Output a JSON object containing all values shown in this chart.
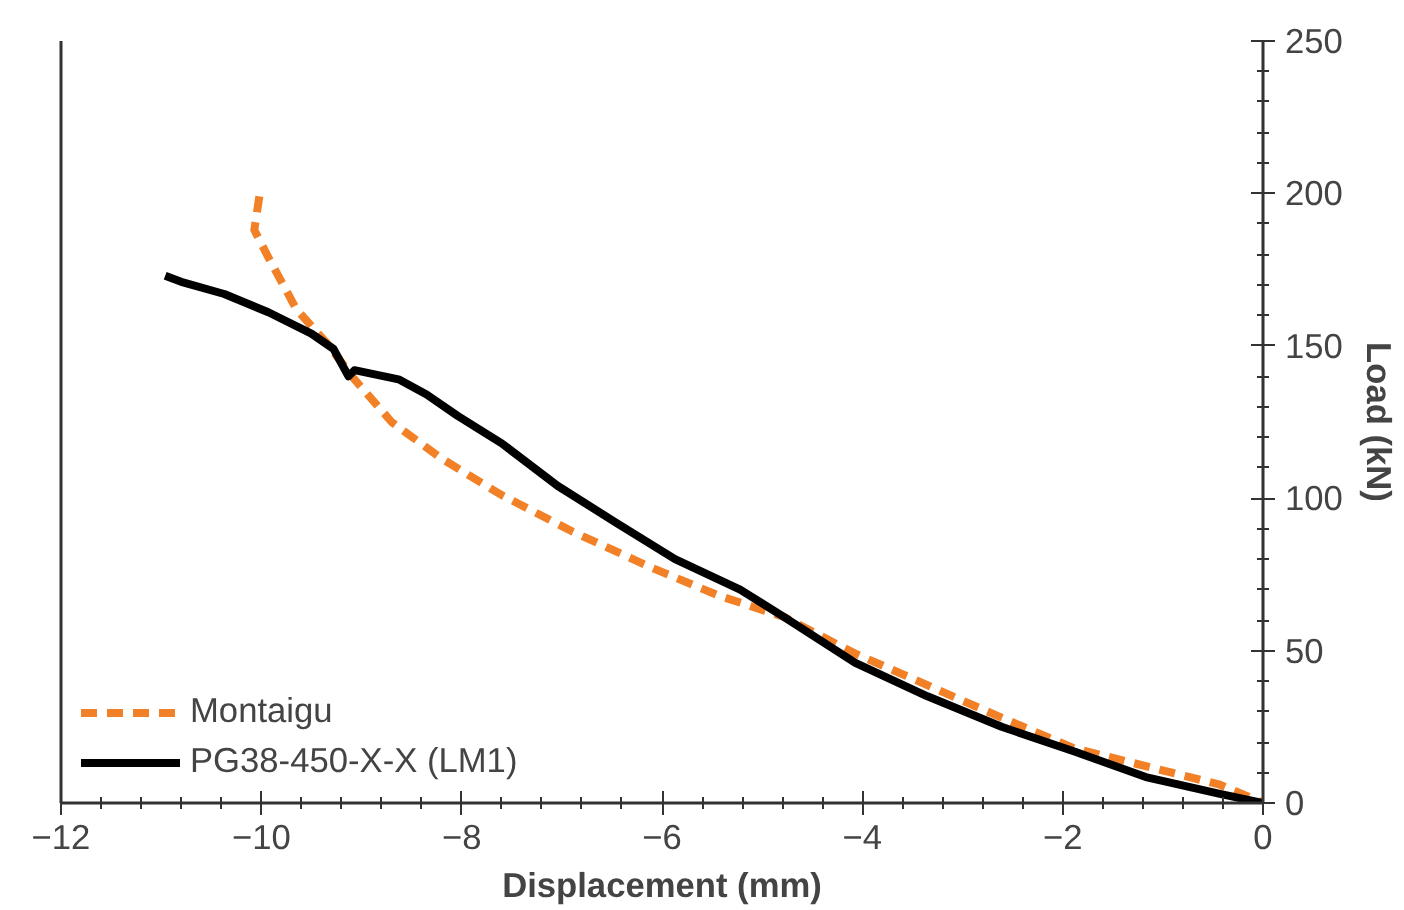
{
  "chart_data": {
    "type": "line",
    "xlabel": "Displacement (mm)",
    "ylabel": "Load (kN)",
    "xlim": [
      -12,
      0
    ],
    "xticks": [
      -12,
      -10,
      -8,
      -6,
      -4,
      -2,
      0
    ],
    "ylim": [
      0,
      250
    ],
    "yticks": [
      0,
      50,
      100,
      150,
      200,
      250
    ],
    "grid": false,
    "legend": "bottom left",
    "marker": "none",
    "series": [
      {
        "name": "Montaigu",
        "color": "#f28026",
        "line_style": "dashed",
        "x": [
          -10.02,
          -10.07,
          -9.93,
          -9.65,
          -9.35,
          -9.07,
          -8.7,
          -8.2,
          -7.6,
          -6.89,
          -6.09,
          -5.43,
          -4.78,
          -4.07,
          -2.61,
          -1.89,
          -0.43,
          0
        ],
        "values": [
          199,
          188,
          179,
          162,
          151,
          139,
          125,
          113,
          101,
          89,
          77,
          68,
          61,
          49,
          28,
          18,
          6,
          0
        ]
      },
      {
        "name": "PG38-450-X-X (LM1)",
        "color": "#000000",
        "line_style": "solid",
        "x": [
          -10.96,
          -10.8,
          -10.37,
          -9.93,
          -9.5,
          -9.28,
          -9.13,
          -9.07,
          -8.63,
          -8.35,
          -8.04,
          -7.6,
          -7.04,
          -6.46,
          -5.87,
          -5.22,
          -4.78,
          -4.07,
          -3.35,
          -2.61,
          -1.89,
          -1.17,
          -0.43,
          0
        ],
        "values": [
          173,
          171,
          167,
          161,
          154,
          149,
          140,
          142,
          139,
          134,
          127,
          118,
          104,
          92,
          80,
          70,
          61,
          46,
          35,
          25,
          17,
          8.5,
          3,
          0
        ]
      }
    ]
  }
}
